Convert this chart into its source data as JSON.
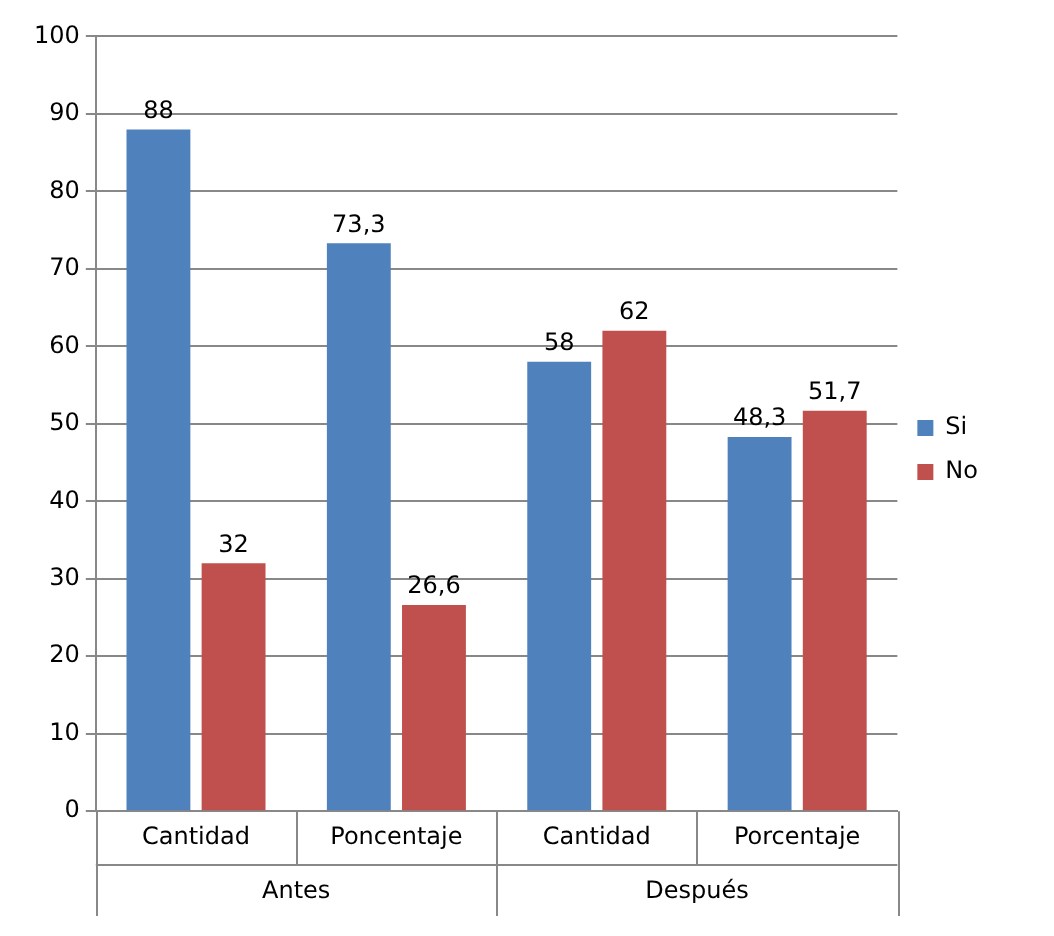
{
  "chart_data": {
    "type": "bar",
    "categories": [
      "Cantidad",
      "Poncentaje",
      "Cantidad",
      "Porcentaje"
    ],
    "series": [
      {
        "name": "Si",
        "color": "#4f81bd",
        "values": [
          88,
          73.3,
          58,
          48.3
        ],
        "value_labels": [
          "88",
          "73,3",
          "58",
          "48,3"
        ]
      },
      {
        "name": "No",
        "color": "#c0504d",
        "values": [
          32,
          26.6,
          62,
          51.7
        ],
        "value_labels": [
          "32",
          "26,6",
          "62",
          "51,7"
        ]
      }
    ],
    "annotations": [
      "Antes",
      "Después"
    ],
    "ylim": [
      0,
      100
    ],
    "yticks": [
      0,
      10,
      20,
      30,
      40,
      50,
      60,
      70,
      80,
      90,
      100
    ],
    "grid": "y",
    "legend": "right"
  }
}
